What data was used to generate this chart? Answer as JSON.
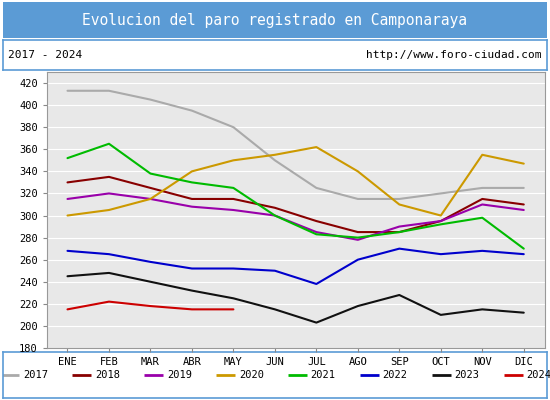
{
  "title": "Evolucion del paro registrado en Camponaraya",
  "subtitle_left": "2017 - 2024",
  "subtitle_right": "http://www.foro-ciudad.com",
  "months": [
    "ENE",
    "FEB",
    "MAR",
    "ABR",
    "MAY",
    "JUN",
    "JUL",
    "AGO",
    "SEP",
    "OCT",
    "NOV",
    "DIC"
  ],
  "ylim": [
    180,
    430
  ],
  "yticks": [
    180,
    200,
    220,
    240,
    260,
    280,
    300,
    320,
    340,
    360,
    380,
    400,
    420
  ],
  "series": {
    "2017": {
      "color": "#aaaaaa",
      "data": [
        413,
        413,
        405,
        395,
        380,
        350,
        325,
        315,
        315,
        320,
        325,
        325
      ]
    },
    "2018": {
      "color": "#880000",
      "data": [
        330,
        335,
        325,
        315,
        315,
        307,
        295,
        285,
        285,
        295,
        315,
        310
      ]
    },
    "2019": {
      "color": "#9900aa",
      "data": [
        315,
        320,
        315,
        308,
        305,
        300,
        285,
        278,
        290,
        295,
        310,
        305
      ]
    },
    "2020": {
      "color": "#cc9900",
      "data": [
        300,
        305,
        315,
        340,
        350,
        355,
        362,
        340,
        310,
        300,
        355,
        347
      ]
    },
    "2021": {
      "color": "#00bb00",
      "data": [
        352,
        365,
        338,
        330,
        325,
        300,
        283,
        280,
        285,
        292,
        298,
        270
      ]
    },
    "2022": {
      "color": "#0000cc",
      "data": [
        268,
        265,
        258,
        252,
        252,
        250,
        238,
        260,
        270,
        265,
        268,
        265
      ]
    },
    "2023": {
      "color": "#111111",
      "data": [
        245,
        248,
        240,
        232,
        225,
        215,
        203,
        218,
        228,
        210,
        215,
        212
      ]
    },
    "2024": {
      "color": "#cc0000",
      "data": [
        215,
        222,
        218,
        215,
        215,
        null,
        null,
        null,
        null,
        null,
        null,
        null
      ]
    }
  },
  "title_bg": "#5b9bd5",
  "title_color": "white",
  "plot_bg": "#e8e8e8",
  "grid_color": "white",
  "border_color": "#5b9bd5"
}
